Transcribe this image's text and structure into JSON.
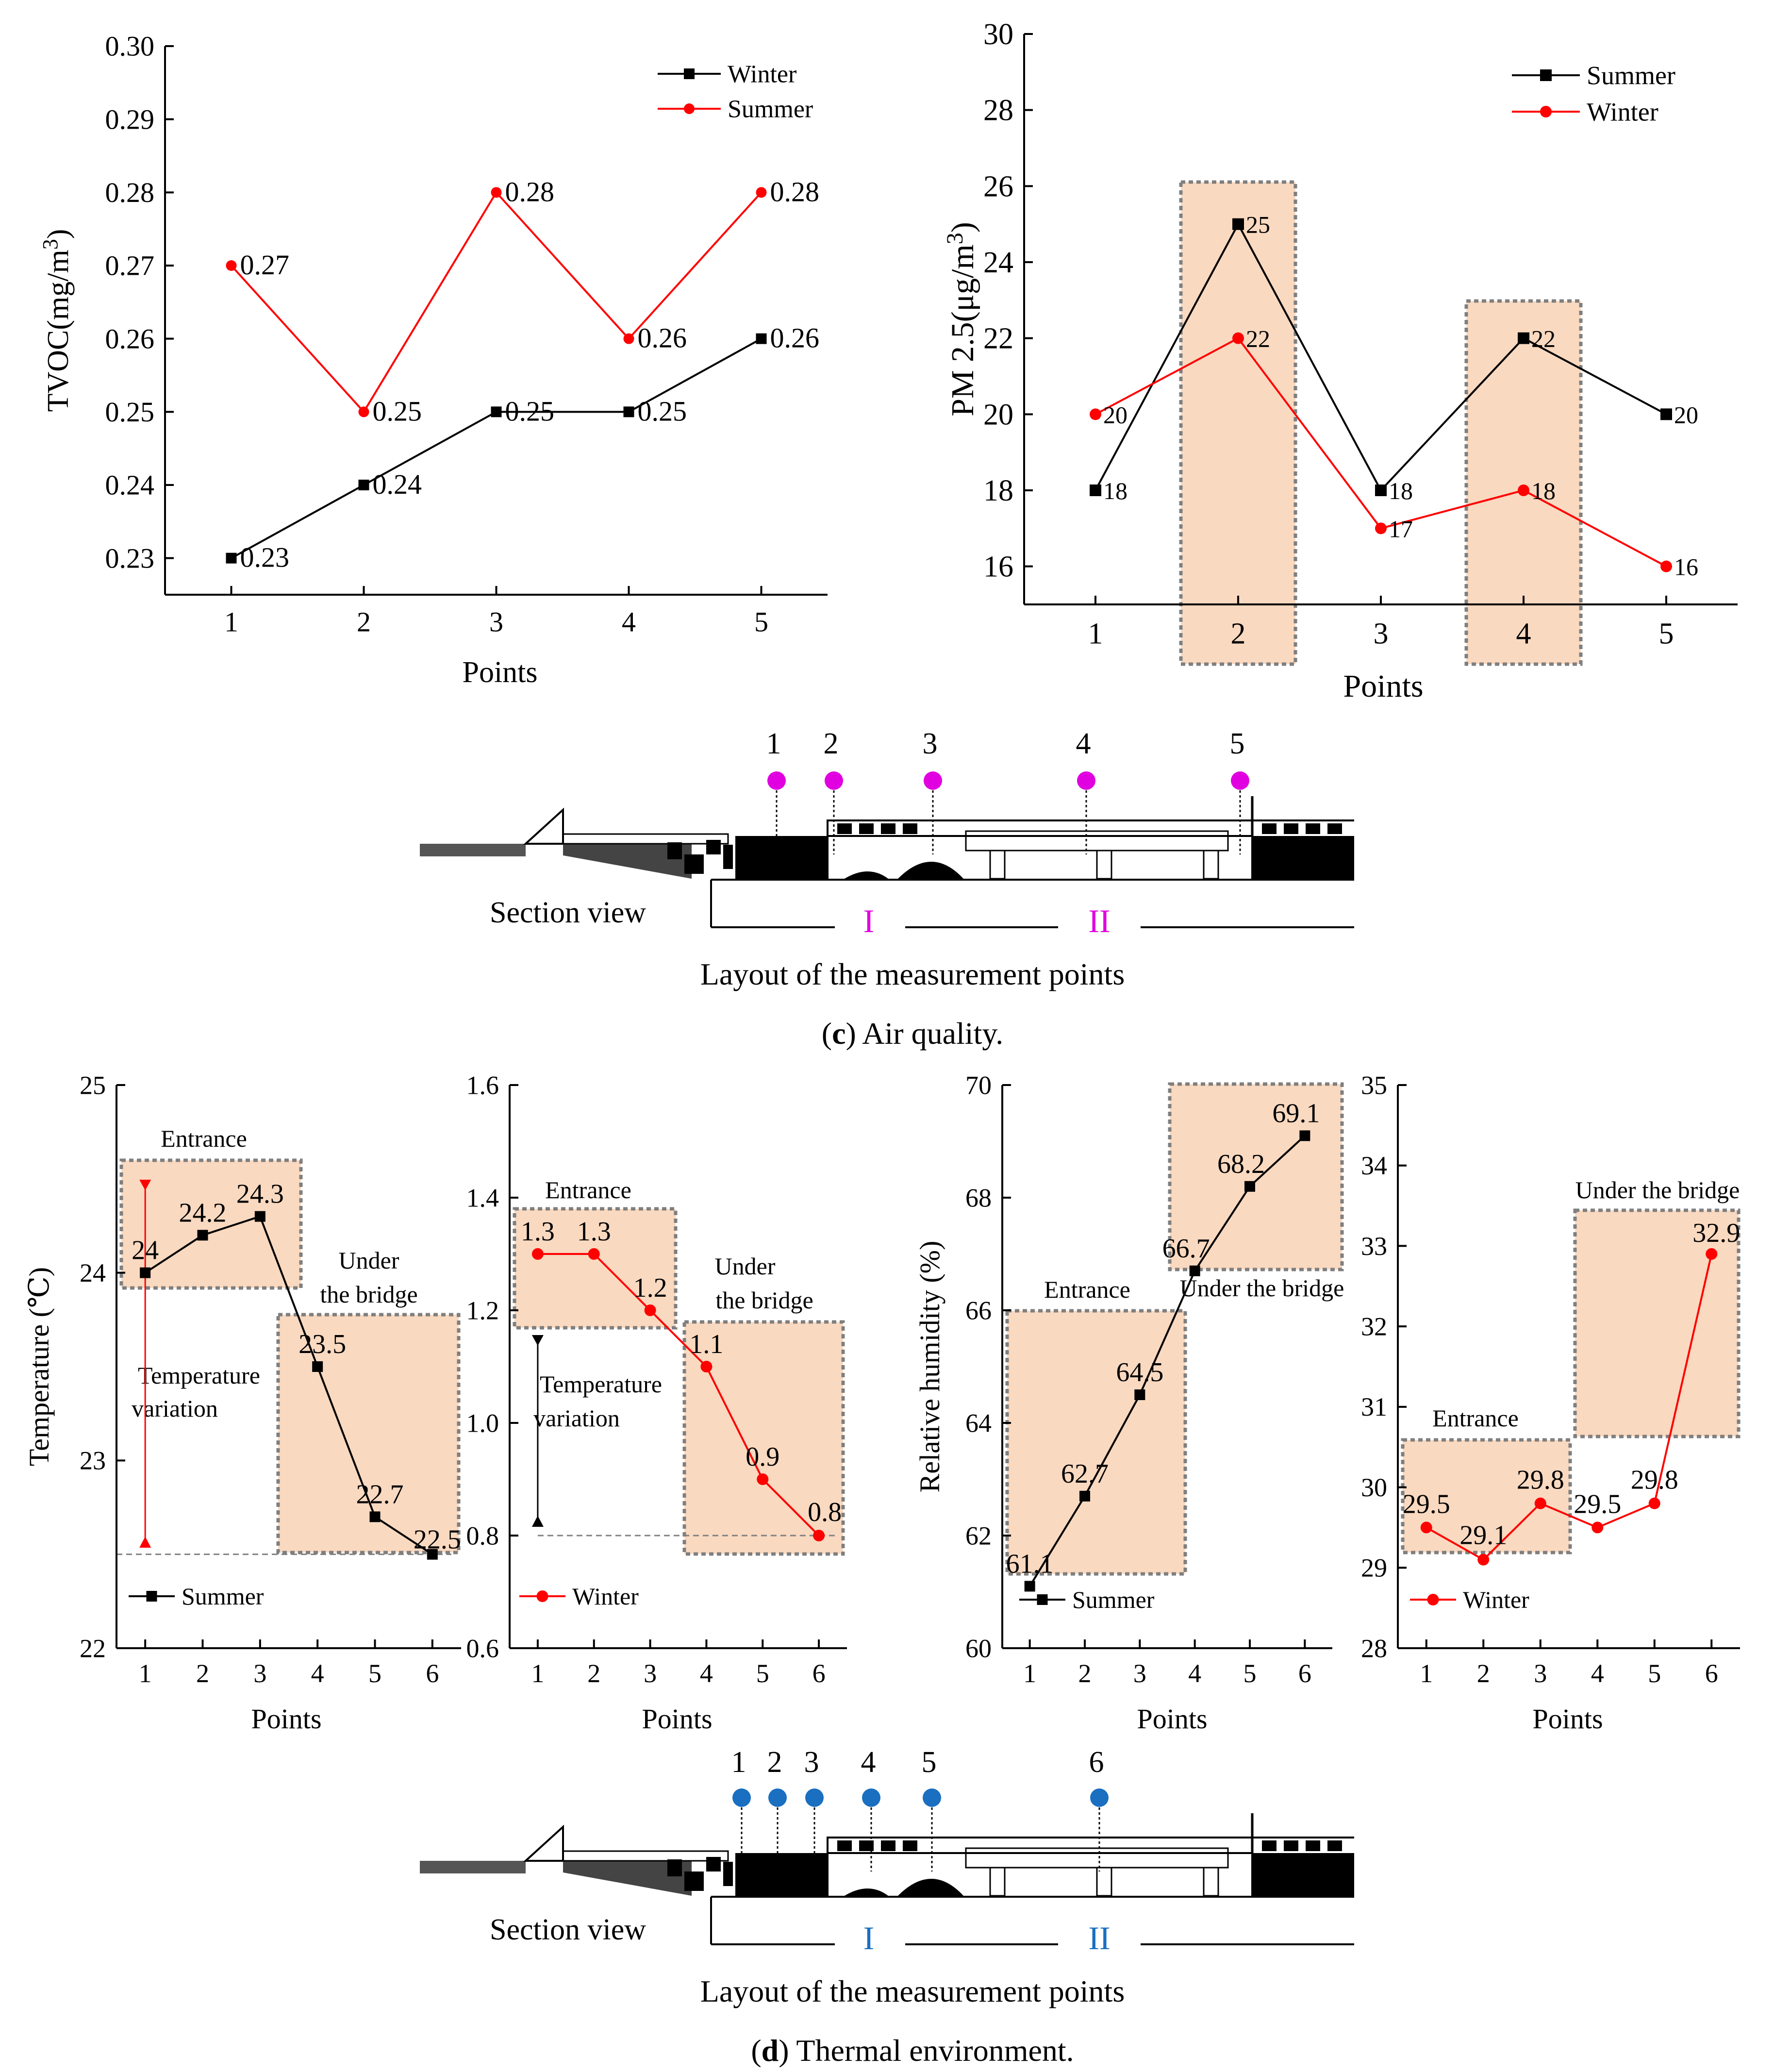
{
  "colors": {
    "black_series": "#000000",
    "red_series": "#ff0000",
    "magenta_marker": "#e000e0",
    "blue_marker": "#1a6fc0",
    "highlight_fill": "#f9d9c0",
    "highlight_border": "#7f7f7f",
    "ref_line": "#808080"
  },
  "chart_data": [
    {
      "type": "line",
      "title": "",
      "xlabel": "Points",
      "ylabel": "TVOC(mg/m3)",
      "ylabel_base": "TVOC(mg/m",
      "ylabel_sup": "3",
      "ylabel_tail": ")",
      "x": [
        1,
        2,
        3,
        4,
        5
      ],
      "xlim": [
        0.5,
        5.5
      ],
      "ylim": [
        0.225,
        0.3
      ],
      "yticks": [
        "0.23",
        "0.24",
        "0.25",
        "0.26",
        "0.27",
        "0.28",
        "0.29",
        "0.30"
      ],
      "legend_position": "top-right",
      "series": [
        {
          "name": "Winter",
          "color": "#000000",
          "marker": "square",
          "values": [
            0.23,
            0.24,
            0.25,
            0.25,
            0.26
          ],
          "labels": [
            "0.23",
            "0.24",
            "0.25",
            "0.25",
            "0.26"
          ]
        },
        {
          "name": "Summer",
          "color": "#ff0000",
          "marker": "circle",
          "values": [
            0.27,
            0.25,
            0.28,
            0.26,
            0.28
          ],
          "labels": [
            "0.27",
            "0.25",
            "0.28",
            "0.26",
            "0.28"
          ]
        }
      ],
      "highlight_x": []
    },
    {
      "type": "line",
      "title": "",
      "xlabel": "Points",
      "ylabel": "PM 2.5(μg/m3)",
      "ylabel_base": "PM 2.5(μg/m",
      "ylabel_sup": "3",
      "ylabel_tail": ")",
      "x": [
        1,
        2,
        3,
        4,
        5
      ],
      "xlim": [
        0.5,
        5.5
      ],
      "ylim": [
        15,
        30
      ],
      "yticks": [
        "16",
        "18",
        "20",
        "22",
        "24",
        "26",
        "28",
        "30"
      ],
      "legend_position": "top-right",
      "series": [
        {
          "name": "Summer",
          "color": "#000000",
          "marker": "square",
          "values": [
            18,
            25,
            18,
            22,
            20
          ],
          "labels": [
            "18",
            "25",
            "18",
            "22",
            "20"
          ]
        },
        {
          "name": "Winter",
          "color": "#ff0000",
          "marker": "circle",
          "values": [
            20,
            22,
            17,
            18,
            16
          ],
          "labels": [
            "20",
            "22",
            "17",
            "18",
            "16"
          ]
        }
      ],
      "highlight_x": [
        2,
        4
      ]
    },
    {
      "type": "line",
      "title": "",
      "xlabel": "Points",
      "ylabel": "Temperature (℃)",
      "x": [
        1,
        2,
        3,
        4,
        5,
        6
      ],
      "xlim": [
        0.5,
        6.5
      ],
      "ylim": [
        22,
        25
      ],
      "yticks": [
        "22",
        "23",
        "24",
        "25"
      ],
      "legend_position": "bottom-left",
      "series": [
        {
          "name": "Summer",
          "color": "#000000",
          "marker": "square",
          "values": [
            24,
            24.2,
            24.3,
            23.5,
            22.7,
            22.5
          ],
          "labels": [
            "24",
            "24.2",
            "24.3",
            "23.5",
            "22.7",
            "22.5"
          ]
        }
      ],
      "annotations": {
        "entrance": "Entrance",
        "under_bridge_1": "Under",
        "under_bridge_2": "the bridge",
        "variation_1": "Temperature",
        "variation_2": "variation"
      }
    },
    {
      "type": "line",
      "title": "",
      "xlabel": "Points",
      "ylabel": "",
      "x": [
        1,
        2,
        3,
        4,
        5,
        6
      ],
      "xlim": [
        0.5,
        6.5
      ],
      "ylim": [
        0.6,
        1.6
      ],
      "yticks": [
        "0.6",
        "0.8",
        "1.0",
        "1.2",
        "1.4",
        "1.6"
      ],
      "legend_position": "bottom-left",
      "series": [
        {
          "name": "Winter",
          "color": "#ff0000",
          "marker": "circle",
          "values": [
            1.3,
            1.3,
            1.2,
            1.1,
            0.9,
            0.8
          ],
          "labels": [
            "1.3",
            "1.3",
            "1.2",
            "1.1",
            "0.9",
            "0.8"
          ]
        }
      ],
      "annotations": {
        "entrance": "Entrance",
        "under_bridge_1": "Under",
        "under_bridge_2": "the bridge",
        "variation_1": "Temperature",
        "variation_2": "variation"
      }
    },
    {
      "type": "line",
      "title": "",
      "xlabel": "Points",
      "ylabel": "Relative humidity (%)",
      "x": [
        1,
        2,
        3,
        4,
        5,
        6
      ],
      "xlim": [
        0.5,
        6.5
      ],
      "ylim": [
        60,
        70
      ],
      "yticks": [
        "60",
        "62",
        "64",
        "66",
        "68",
        "70"
      ],
      "legend_position": "bottom-left",
      "series": [
        {
          "name": "Summer",
          "color": "#000000",
          "marker": "square",
          "values": [
            61.1,
            62.7,
            64.5,
            66.7,
            68.2,
            69.1
          ],
          "labels": [
            "61.1",
            "62.7",
            "64.5",
            "66.7",
            "68.2",
            "69.1"
          ]
        }
      ],
      "annotations": {
        "entrance": "Entrance",
        "under_bridge": "Under the bridge"
      }
    },
    {
      "type": "line",
      "title": "",
      "xlabel": "Points",
      "ylabel": "",
      "x": [
        1,
        2,
        3,
        4,
        5,
        6
      ],
      "xlim": [
        0.5,
        6.5
      ],
      "ylim": [
        28,
        35
      ],
      "yticks": [
        "28",
        "29",
        "30",
        "31",
        "32",
        "33",
        "34",
        "35"
      ],
      "legend_position": "bottom-left",
      "series": [
        {
          "name": "Winter",
          "color": "#ff0000",
          "marker": "circle",
          "values": [
            29.5,
            29.1,
            29.8,
            29.5,
            29.8,
            32.9
          ],
          "labels": [
            "29.5",
            "29.1",
            "29.8",
            "29.5",
            "29.8",
            "32.9"
          ]
        }
      ],
      "annotations": {
        "entrance": "Entrance",
        "under_bridge": "Under the bridge"
      }
    }
  ],
  "section_c": {
    "point_numbers": [
      "1",
      "2",
      "3",
      "4",
      "5"
    ],
    "view_label": "Section view",
    "zone_1": "I",
    "zone_2": "II",
    "layout_caption": "Layout of the measurement points",
    "caption_letter": "c",
    "caption_rest": " Air quality."
  },
  "section_d": {
    "point_numbers": [
      "1",
      "2",
      "3",
      "4",
      "5",
      "6"
    ],
    "view_label": "Section view",
    "zone_1": "I",
    "zone_2": "II",
    "layout_caption": "Layout of the measurement points",
    "caption_letter": "d",
    "caption_rest": " Thermal environment."
  }
}
